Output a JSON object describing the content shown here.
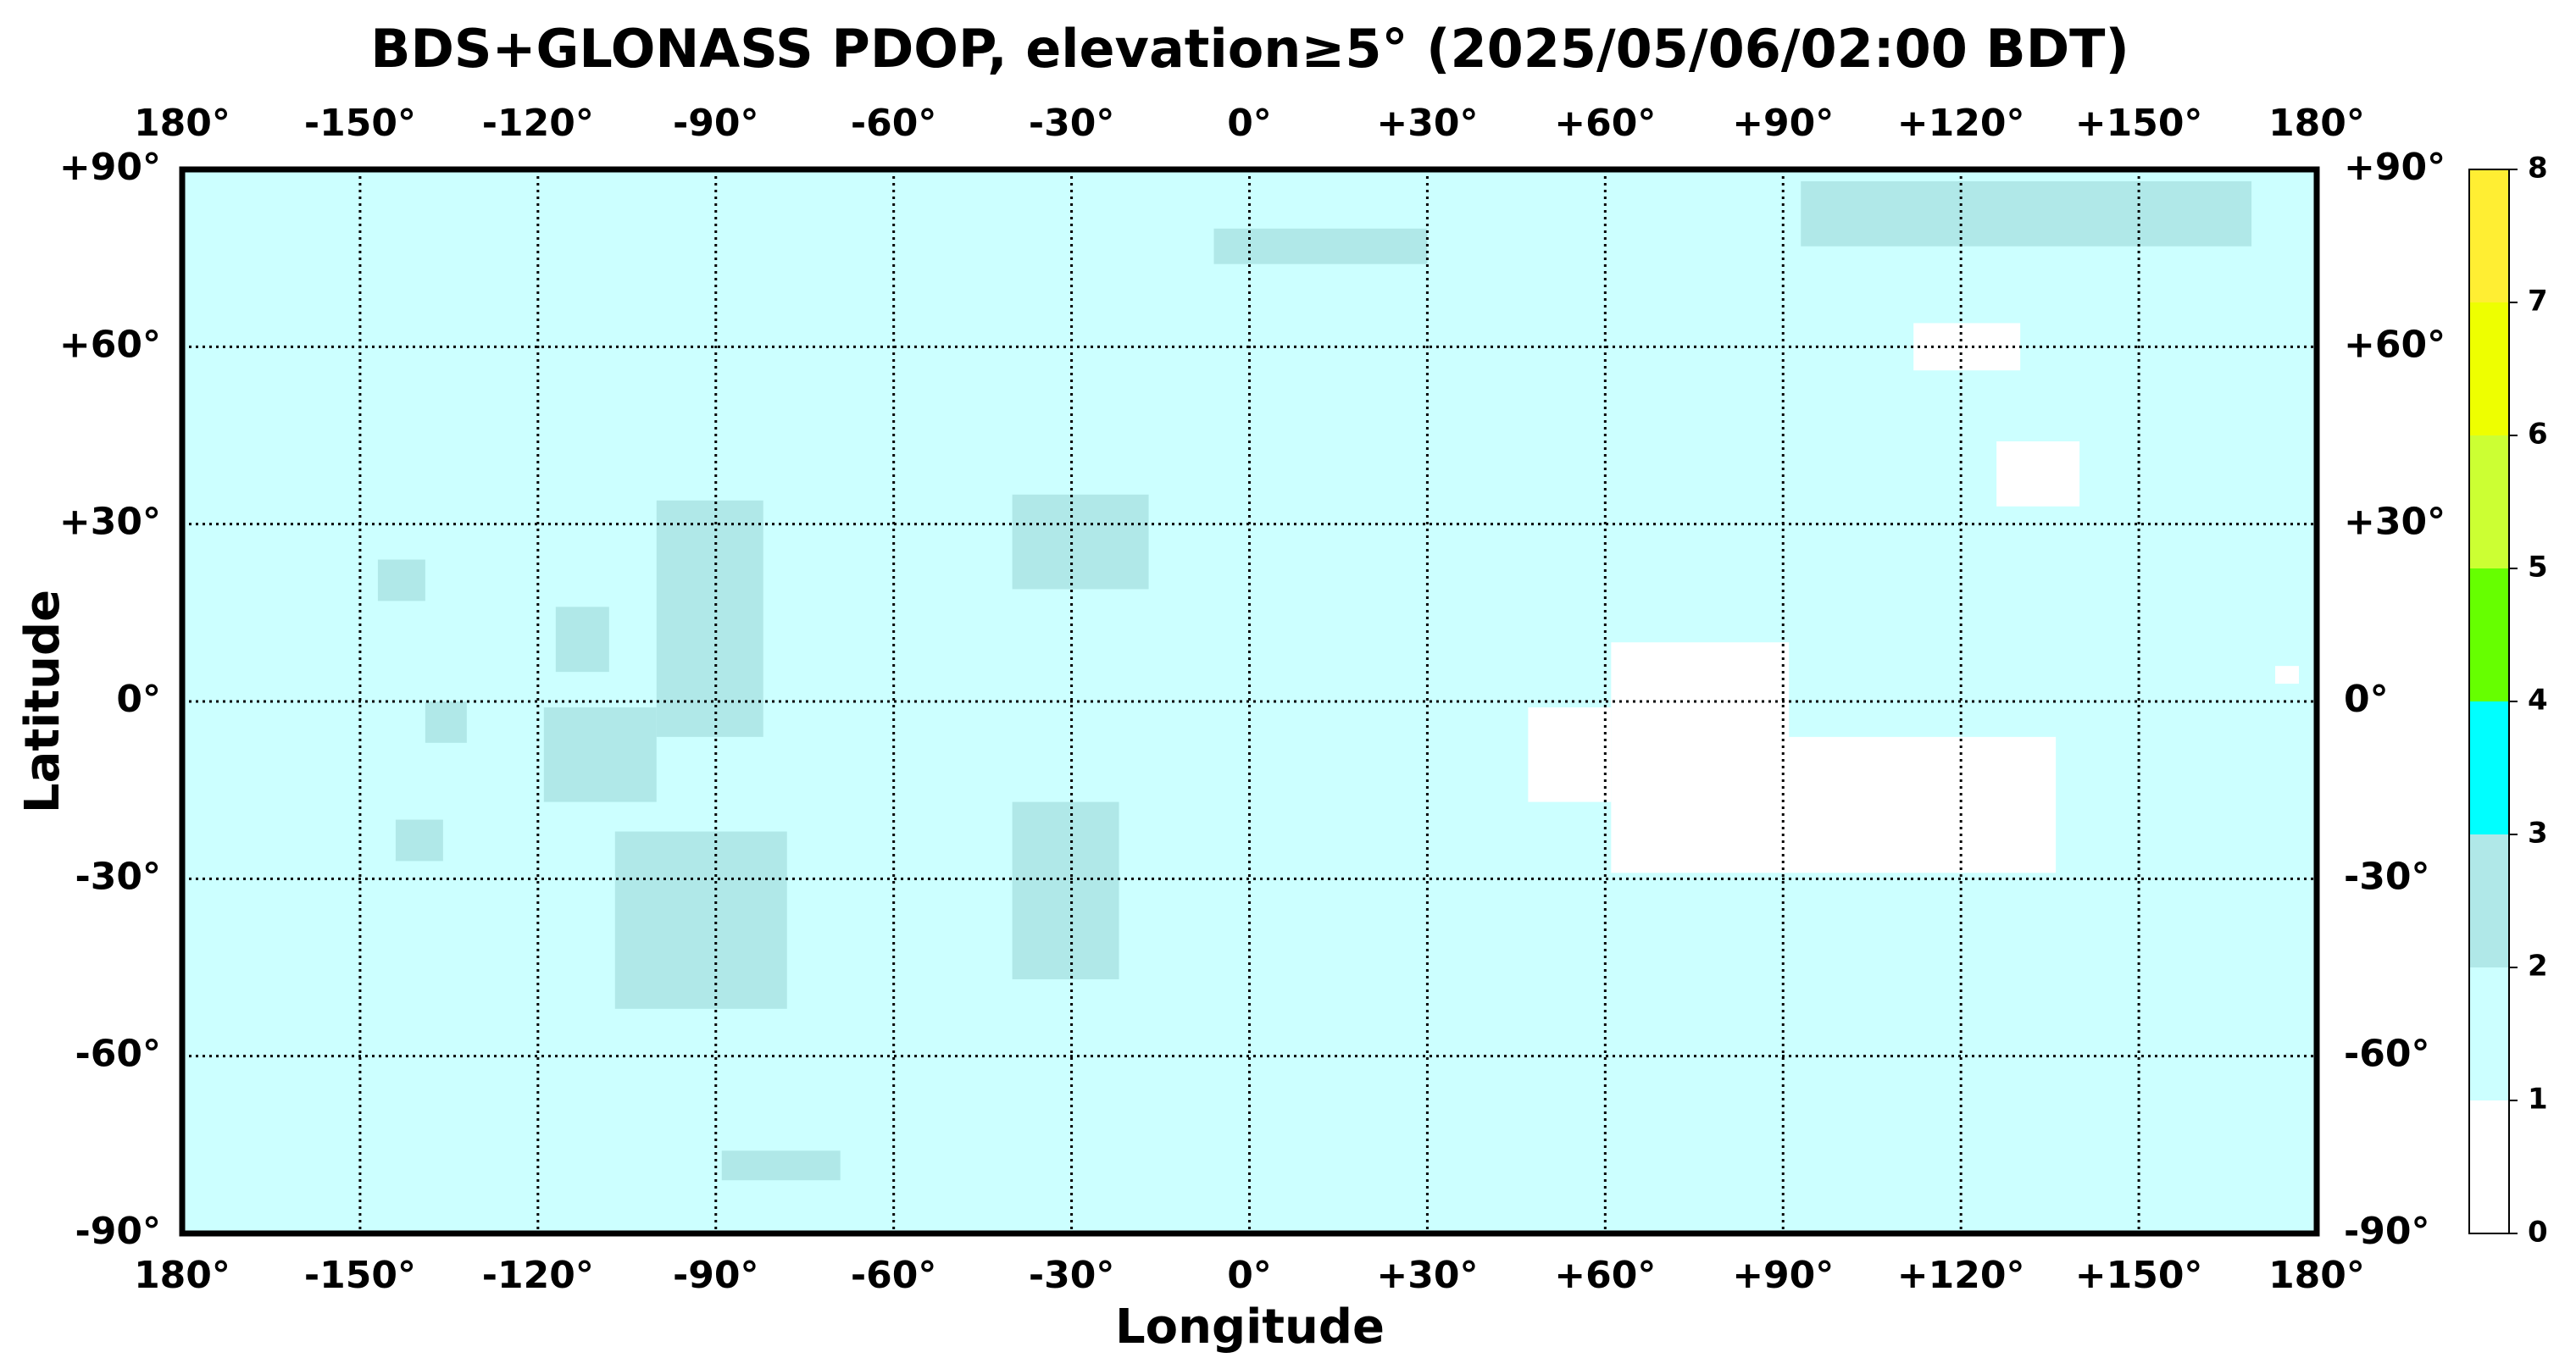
{
  "chart_data": {
    "type": "map",
    "title": "BDS+GLONASS PDOP, elevation≥5° (2025/05/06/02:00 BDT)",
    "xlabel": "Longitude",
    "ylabel": "Latitude",
    "xlim": [
      -180,
      180
    ],
    "ylim": [
      -90,
      90
    ],
    "xticks": [
      {
        "value": -180,
        "label": "180°"
      },
      {
        "value": -150,
        "label": "-150°"
      },
      {
        "value": -120,
        "label": "-120°"
      },
      {
        "value": -90,
        "label": "-90°"
      },
      {
        "value": -60,
        "label": "-60°"
      },
      {
        "value": -30,
        "label": "-30°"
      },
      {
        "value": 0,
        "label": "0°"
      },
      {
        "value": 30,
        "label": "+30°"
      },
      {
        "value": 60,
        "label": "+60°"
      },
      {
        "value": 90,
        "label": "+90°"
      },
      {
        "value": 120,
        "label": "+120°"
      },
      {
        "value": 150,
        "label": "+150°"
      },
      {
        "value": 180,
        "label": "180°"
      }
    ],
    "yticks": [
      {
        "value": 90,
        "label": "+90°"
      },
      {
        "value": 60,
        "label": "+60°"
      },
      {
        "value": 30,
        "label": "+30°"
      },
      {
        "value": 0,
        "label": "0°"
      },
      {
        "value": -30,
        "label": "-30°"
      },
      {
        "value": -60,
        "label": "-60°"
      },
      {
        "value": -90,
        "label": "-90°"
      }
    ],
    "grid": true,
    "colorbar": {
      "levels": [
        0,
        1,
        2,
        3,
        4,
        5,
        6,
        7,
        8
      ],
      "colors": [
        "#ffffff",
        "#ccffff",
        "#b0e8e8",
        "#00ffff",
        "#66ff00",
        "#ccff33",
        "#eeff00",
        "#ffee33"
      ]
    },
    "regions": [
      {
        "lon": [
          -180,
          180
        ],
        "lat": [
          -90,
          90
        ],
        "pdop": 1.5
      },
      {
        "lon": [
          -100,
          -82
        ],
        "lat": [
          -6,
          34
        ],
        "pdop": 2.2
      },
      {
        "lon": [
          -119,
          -100
        ],
        "lat": [
          -17,
          -1
        ],
        "pdop": 2.2
      },
      {
        "lon": [
          -117,
          -108
        ],
        "lat": [
          5,
          16
        ],
        "pdop": 2.2
      },
      {
        "lon": [
          -107,
          -78
        ],
        "lat": [
          -52,
          -22
        ],
        "pdop": 2.2
      },
      {
        "lon": [
          -40,
          -22
        ],
        "lat": [
          -47,
          -17
        ],
        "pdop": 2.2
      },
      {
        "lon": [
          -40,
          -17
        ],
        "lat": [
          19,
          35
        ],
        "pdop": 2.2
      },
      {
        "lon": [
          93,
          169
        ],
        "lat": [
          77,
          88
        ],
        "pdop": 2.2
      },
      {
        "lon": [
          -6,
          30
        ],
        "lat": [
          74,
          80
        ],
        "pdop": 2.2
      },
      {
        "lon": [
          -89,
          -69
        ],
        "lat": [
          -81,
          -76
        ],
        "pdop": 2.2
      },
      {
        "lon": [
          -147,
          -139
        ],
        "lat": [
          17,
          24
        ],
        "pdop": 2.2
      },
      {
        "lon": [
          -144,
          -136
        ],
        "lat": [
          -27,
          -20
        ],
        "pdop": 2.2
      },
      {
        "lon": [
          -139,
          -132
        ],
        "lat": [
          -7,
          0
        ],
        "pdop": 2.2
      },
      {
        "lon": [
          61,
          91
        ],
        "lat": [
          -29,
          10
        ],
        "pdop": 0.9
      },
      {
        "lon": [
          47,
          61
        ],
        "lat": [
          -17,
          -1
        ],
        "pdop": 0.9
      },
      {
        "lon": [
          91,
          136
        ],
        "lat": [
          -29,
          -6
        ],
        "pdop": 0.9
      },
      {
        "lon": [
          173,
          177
        ],
        "lat": [
          3,
          6
        ],
        "pdop": 0.9
      },
      {
        "lon": [
          112,
          130
        ],
        "lat": [
          56,
          64
        ],
        "pdop": 0.9
      },
      {
        "lon": [
          126,
          140
        ],
        "lat": [
          33,
          44
        ],
        "pdop": 0.9
      }
    ]
  }
}
